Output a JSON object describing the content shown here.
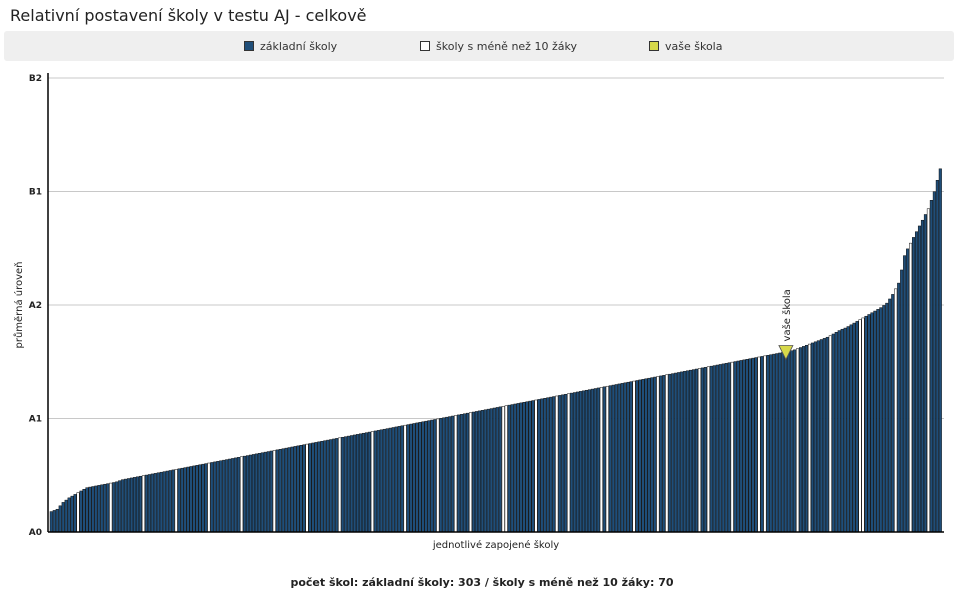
{
  "title": "Relativní postavení školy v testu AJ - celkově",
  "footer": "počet škol: základní školy: 303 / školy s méně než 10 žáky: 70",
  "legend": [
    {
      "label": "základní školy",
      "color": "#1f4e79"
    },
    {
      "label": "školy s méně než 10 žáky",
      "color": "#ffffff"
    },
    {
      "label": "vaše škola",
      "color": "#d7d94a"
    }
  ],
  "chart_data": {
    "type": "bar",
    "xlabel": "jednotlivé zapojené školy",
    "ylabel": "průměrná úroveň",
    "y_ticks": [
      {
        "label": "A0",
        "value": 0
      },
      {
        "label": "A1",
        "value": 1
      },
      {
        "label": "A2",
        "value": 2
      },
      {
        "label": "B1",
        "value": 3
      },
      {
        "label": "B2",
        "value": 4
      }
    ],
    "ylim": [
      0,
      4
    ],
    "grid": true,
    "marker_label": "vaše škola",
    "marker_value": 1.52,
    "marker_rank": 0.825,
    "series": [
      {
        "values": [
          0.18,
          0.2,
          0.26,
          0.3,
          0.33,
          0.36,
          0.39,
          0.4,
          0.41,
          0.42,
          0.43,
          0.44,
          0.46,
          0.47,
          0.48,
          0.49,
          0.5,
          0.51,
          0.52,
          0.53,
          0.54,
          0.55,
          0.56,
          0.57,
          0.58,
          0.59,
          0.6,
          0.61,
          0.62,
          0.63,
          0.64,
          0.65,
          0.66,
          0.67,
          0.68,
          0.69,
          0.7,
          0.71,
          0.72,
          0.73,
          0.74,
          0.75,
          0.76,
          0.77,
          0.78,
          0.79,
          0.8,
          0.81,
          0.82,
          0.83,
          0.84,
          0.85,
          0.86,
          0.87,
          0.88,
          0.89,
          0.9,
          0.91,
          0.92,
          0.93,
          0.94,
          0.95,
          0.96,
          0.97,
          0.98,
          0.99,
          1.0,
          1.01,
          1.02,
          1.03,
          1.04,
          1.05,
          1.06,
          1.07,
          1.08,
          1.09,
          1.1,
          1.11,
          1.12,
          1.13,
          1.14,
          1.15,
          1.16,
          1.17,
          1.18,
          1.19,
          1.2,
          1.21,
          1.22,
          1.23,
          1.24,
          1.25,
          1.26,
          1.27,
          1.28,
          1.29,
          1.3,
          1.31,
          1.32,
          1.33,
          1.34,
          1.35,
          1.36,
          1.37,
          1.38,
          1.39,
          1.4,
          1.41,
          1.42,
          1.43,
          1.44,
          1.45,
          1.46,
          1.47,
          1.48,
          1.49,
          1.5,
          1.51,
          1.52,
          1.53,
          1.54,
          1.55,
          1.56,
          1.57,
          1.58,
          1.59,
          1.6,
          1.62,
          1.64,
          1.66,
          1.68,
          1.7,
          1.72,
          1.75,
          1.78,
          1.8,
          1.83,
          1.86,
          1.89,
          1.92,
          1.95,
          1.98,
          2.02,
          2.1,
          2.2,
          2.45,
          2.55,
          2.65,
          2.75,
          2.85,
          3.0,
          3.2
        ]
      }
    ]
  }
}
